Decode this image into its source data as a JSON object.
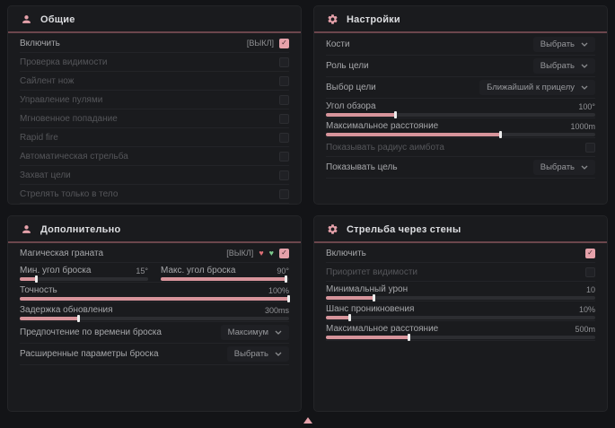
{
  "theme": {
    "accent": "#e5a1aa",
    "slider_fill": "#d7949b",
    "header_line": "#6b464c",
    "panel_bg": "#1a1b1e",
    "page_bg": "#131417",
    "red_icon": "#de6e75",
    "green_icon": "#7cc98c"
  },
  "panels": [
    {
      "id": "general",
      "title": "Общие",
      "icon": "person",
      "rows": [
        {
          "type": "toggle",
          "label": "Включить",
          "suffix": "[ВЫКЛ]",
          "checked": true,
          "enabled": true
        },
        {
          "type": "toggle",
          "label": "Проверка видимости",
          "checked": false,
          "enabled": false
        },
        {
          "type": "toggle",
          "label": "Сайлент нож",
          "checked": false,
          "enabled": false
        },
        {
          "type": "toggle",
          "label": "Управление пулями",
          "checked": false,
          "enabled": false
        },
        {
          "type": "toggle",
          "label": "Мгновенное попадание",
          "checked": false,
          "enabled": false
        },
        {
          "type": "toggle",
          "label": "Rapid fire",
          "checked": false,
          "enabled": false
        },
        {
          "type": "toggle",
          "label": "Автоматическая стрельба",
          "checked": false,
          "enabled": false
        },
        {
          "type": "toggle",
          "label": "Захват цели",
          "checked": false,
          "enabled": false
        },
        {
          "type": "toggle",
          "label": "Стрелять только в тело",
          "checked": false,
          "enabled": false
        }
      ]
    },
    {
      "id": "settings",
      "title": "Настройки",
      "icon": "gear",
      "rows": [
        {
          "type": "dropdown",
          "label": "Кости",
          "value": "Выбрать"
        },
        {
          "type": "dropdown",
          "label": "Роль цели",
          "value": "Выбрать"
        },
        {
          "type": "dropdown",
          "label": "Выбор цели",
          "value": "Ближайший к прицелу"
        },
        {
          "type": "slider",
          "label": "Угол обзора",
          "value": "100°",
          "fill": 26
        },
        {
          "type": "slider",
          "label": "Максимальное расстояние",
          "value": "1000m",
          "fill": 65
        },
        {
          "type": "toggle",
          "label": "Показывать радиус аимбота",
          "checked": false,
          "enabled": false
        },
        {
          "type": "dropdown",
          "label": "Показывать цель",
          "value": "Выбрать"
        }
      ]
    },
    {
      "id": "additional",
      "title": "Дополнительно",
      "icon": "person",
      "rows": [
        {
          "type": "toggle",
          "label": "Магическая граната",
          "suffix": "[ВЫКЛ]",
          "checked": true,
          "enabled": true,
          "extra_icons": [
            {
              "name": "red-heart-icon",
              "glyph": "♥",
              "color": "#de6e75"
            },
            {
              "name": "green-heart-icon",
              "glyph": "♥",
              "color": "#7cc98c"
            }
          ]
        },
        {
          "type": "slider-pair",
          "sliders": [
            {
              "label": "Мин. угол броска",
              "value": "15°",
              "fill": 13
            },
            {
              "label": "Макс. угол броска",
              "value": "90°",
              "fill": 98
            }
          ]
        },
        {
          "type": "slider",
          "label": "Точность",
          "value": "100%",
          "fill": 100
        },
        {
          "type": "slider",
          "label": "Задержка обновления",
          "value": "300ms",
          "fill": 22
        },
        {
          "type": "dropdown",
          "label": "Предпочтение по времени броска",
          "value": "Максимум"
        },
        {
          "type": "dropdown",
          "label": "Расширенные параметры броска",
          "value": "Выбрать"
        }
      ]
    },
    {
      "id": "wallbang",
      "title": "Стрельба через стены",
      "icon": "gear",
      "rows": [
        {
          "type": "toggle",
          "label": "Включить",
          "checked": true,
          "enabled": true
        },
        {
          "type": "toggle",
          "label": "Приоритет видимости",
          "checked": false,
          "enabled": false
        },
        {
          "type": "slider",
          "label": "Минимальный урон",
          "value": "10",
          "fill": 18
        },
        {
          "type": "slider",
          "label": "Шанс проникновения",
          "value": "10%",
          "fill": 9
        },
        {
          "type": "slider",
          "label": "Максимальное расстояние",
          "value": "500m",
          "fill": 31
        }
      ]
    }
  ],
  "footer": {
    "scroll_indicator": "up-arrow"
  }
}
